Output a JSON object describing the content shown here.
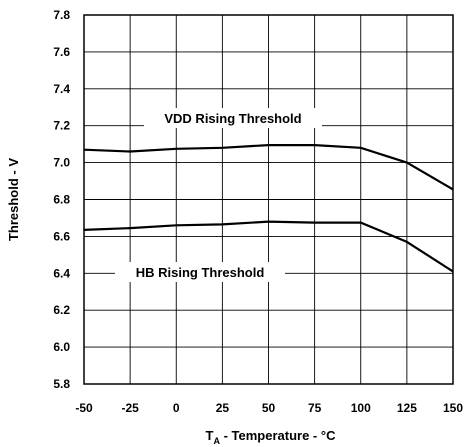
{
  "chart_data": {
    "type": "line",
    "xlabel_main": "T",
    "xlabel_sub": "A",
    "xlabel_rest": " - Temperature - °C",
    "ylabel": "Threshold - V",
    "xlim": [
      -50,
      150
    ],
    "ylim": [
      5.8,
      7.8
    ],
    "x_ticks": [
      "-50",
      "-25",
      "0",
      "25",
      "50",
      "75",
      "100",
      "125",
      "150"
    ],
    "y_ticks": [
      "7.8",
      "7.6",
      "7.4",
      "7.2",
      "7.0",
      "6.8",
      "6.6",
      "6.4",
      "6.2",
      "6.0",
      "5.8"
    ],
    "grid": true,
    "series": [
      {
        "name": "VDD Rising Threshold",
        "x": [
          -50,
          -25,
          0,
          25,
          50,
          75,
          100,
          125,
          150
        ],
        "y": [
          7.07,
          7.06,
          7.075,
          7.08,
          7.095,
          7.095,
          7.08,
          7.0,
          6.855
        ]
      },
      {
        "name": "HB Rising Threshold",
        "x": [
          -50,
          -25,
          0,
          25,
          50,
          75,
          100,
          125,
          150
        ],
        "y": [
          6.635,
          6.645,
          6.66,
          6.665,
          6.68,
          6.675,
          6.675,
          6.57,
          6.41
        ]
      }
    ]
  }
}
